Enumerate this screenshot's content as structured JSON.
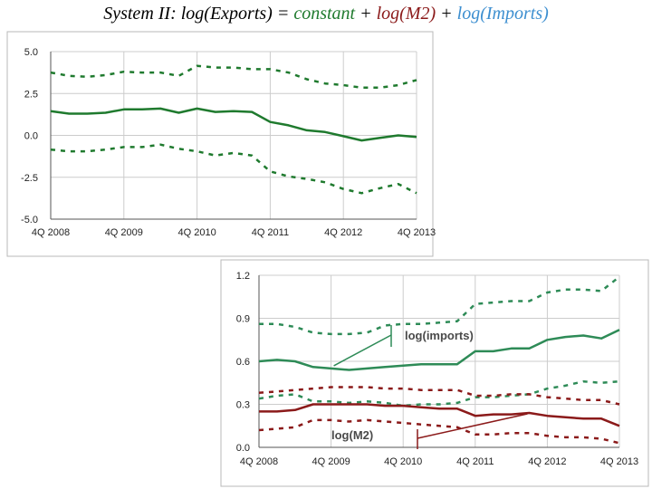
{
  "title": {
    "prefix": "System II: log(Exports) = ",
    "constant": "constant",
    "plus1": " + ",
    "m2": "log(M2)",
    "plus2": " + ",
    "imports": "log(Imports)"
  },
  "colors": {
    "constant": "#1f7a2e",
    "m2": "#8b1a1a",
    "imports": "#3d8fd0",
    "imports_series": "#2e8b57",
    "grid": "#cccccc",
    "panel_border": "#b8b8b8"
  },
  "chart_data": [
    {
      "type": "line",
      "x": [
        "4Q 2008",
        "1Q 2009",
        "2Q 2009",
        "3Q 2009",
        "4Q 2009",
        "1Q 2010",
        "2Q 2010",
        "3Q 2010",
        "4Q 2010",
        "1Q 2011",
        "2Q 2011",
        "3Q 2011",
        "4Q 2011",
        "1Q 2012",
        "2Q 2012",
        "3Q 2012",
        "4Q 2012",
        "1Q 2013",
        "2Q 2013",
        "3Q 2013",
        "4Q 2013"
      ],
      "xticks": [
        "4Q 2008",
        "4Q 2009",
        "4Q 2010",
        "4Q 2011",
        "4Q 2012",
        "4Q 2013"
      ],
      "yticks": [
        "5.0",
        "2.5",
        "0.0",
        "-2.5",
        "-5.0"
      ],
      "ylim": [
        -5.0,
        5.0
      ],
      "grid": true,
      "series": [
        {
          "role": "estimate",
          "style": "solid",
          "values": [
            1.45,
            1.3,
            1.3,
            1.35,
            1.55,
            1.55,
            1.6,
            1.35,
            1.6,
            1.4,
            1.45,
            1.4,
            0.8,
            0.6,
            0.3,
            0.2,
            -0.05,
            -0.3,
            -0.15,
            0.0,
            -0.1
          ]
        },
        {
          "role": "upper",
          "style": "dashed",
          "values": [
            3.75,
            3.55,
            3.5,
            3.6,
            3.8,
            3.75,
            3.75,
            3.55,
            4.15,
            4.05,
            4.05,
            3.95,
            3.95,
            3.75,
            3.35,
            3.1,
            3.0,
            2.85,
            2.85,
            3.0,
            3.3
          ]
        },
        {
          "role": "lower",
          "style": "dashed",
          "values": [
            -0.85,
            -0.95,
            -0.95,
            -0.85,
            -0.7,
            -0.7,
            -0.55,
            -0.8,
            -0.95,
            -1.2,
            -1.05,
            -1.2,
            -2.15,
            -2.45,
            -2.6,
            -2.8,
            -3.2,
            -3.45,
            -3.15,
            -2.9,
            -3.45
          ]
        }
      ]
    },
    {
      "type": "line",
      "x": [
        "4Q 2008",
        "1Q 2009",
        "2Q 2009",
        "3Q 2009",
        "4Q 2009",
        "1Q 2010",
        "2Q 2010",
        "3Q 2010",
        "4Q 2010",
        "1Q 2011",
        "2Q 2011",
        "3Q 2011",
        "4Q 2011",
        "1Q 2012",
        "2Q 2012",
        "3Q 2012",
        "4Q 2012",
        "1Q 2013",
        "2Q 2013",
        "3Q 2013",
        "4Q 2013"
      ],
      "xticks": [
        "4Q 2008",
        "4Q 2009",
        "4Q 2010",
        "4Q 2011",
        "4Q 2012",
        "4Q 2013"
      ],
      "yticks": [
        "1.2",
        "0.9",
        "0.6",
        "0.3",
        "0.0"
      ],
      "ylim": [
        0.0,
        1.2
      ],
      "grid": true,
      "annotations": [
        "log(imports)",
        "log(M2)"
      ],
      "series": [
        {
          "name": "log(imports)",
          "role": "estimate",
          "style": "solid",
          "values": [
            0.6,
            0.61,
            0.6,
            0.56,
            0.55,
            0.54,
            0.55,
            0.56,
            0.57,
            0.58,
            0.58,
            0.58,
            0.67,
            0.67,
            0.69,
            0.69,
            0.75,
            0.77,
            0.78,
            0.76,
            0.82
          ]
        },
        {
          "name": "log(imports)",
          "role": "upper",
          "style": "dashed",
          "values": [
            0.86,
            0.86,
            0.84,
            0.8,
            0.79,
            0.79,
            0.8,
            0.85,
            0.86,
            0.86,
            0.87,
            0.88,
            1.0,
            1.01,
            1.02,
            1.02,
            1.08,
            1.1,
            1.1,
            1.09,
            1.19
          ]
        },
        {
          "name": "log(imports)",
          "role": "lower",
          "style": "dashed",
          "values": [
            0.34,
            0.36,
            0.37,
            0.32,
            0.32,
            0.31,
            0.32,
            0.31,
            0.29,
            0.3,
            0.3,
            0.31,
            0.35,
            0.35,
            0.36,
            0.37,
            0.41,
            0.43,
            0.46,
            0.45,
            0.46
          ]
        },
        {
          "name": "log(M2)",
          "role": "estimate",
          "style": "solid",
          "values": [
            0.25,
            0.25,
            0.26,
            0.3,
            0.3,
            0.3,
            0.3,
            0.29,
            0.29,
            0.28,
            0.27,
            0.27,
            0.22,
            0.23,
            0.23,
            0.24,
            0.22,
            0.21,
            0.2,
            0.2,
            0.15
          ]
        },
        {
          "name": "log(M2)",
          "role": "upper",
          "style": "dashed",
          "values": [
            0.38,
            0.39,
            0.4,
            0.41,
            0.42,
            0.42,
            0.42,
            0.41,
            0.41,
            0.4,
            0.4,
            0.4,
            0.36,
            0.36,
            0.37,
            0.37,
            0.35,
            0.34,
            0.33,
            0.33,
            0.3
          ]
        },
        {
          "name": "log(M2)",
          "role": "lower",
          "style": "dashed",
          "values": [
            0.12,
            0.13,
            0.14,
            0.19,
            0.19,
            0.18,
            0.19,
            0.18,
            0.17,
            0.16,
            0.15,
            0.14,
            0.09,
            0.09,
            0.1,
            0.1,
            0.08,
            0.07,
            0.07,
            0.06,
            0.03
          ]
        }
      ]
    }
  ]
}
